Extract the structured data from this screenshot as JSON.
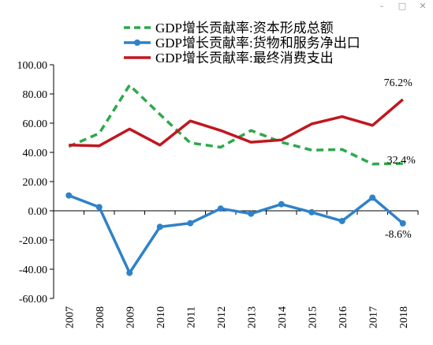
{
  "window": {
    "minimize_glyph": "–",
    "maximize_glyph": "□",
    "close_glyph": "✕",
    "minimize_icon": "minimize-icon",
    "maximize_icon": "maximize-icon",
    "close_icon": "close-icon"
  },
  "chart_data": {
    "type": "line",
    "title": "",
    "xlabel": "",
    "ylabel": "",
    "categories": [
      "2007",
      "2008",
      "2009",
      "2010",
      "2011",
      "2012",
      "2013",
      "2014",
      "2015",
      "2016",
      "2017",
      "2018"
    ],
    "ylim": [
      -60,
      100
    ],
    "yticks": [
      -60,
      -40,
      -20,
      0,
      20,
      40,
      60,
      80,
      100
    ],
    "ytick_labels": [
      "-60.00",
      "-40.00",
      "-20.00",
      "0.00",
      "20.00",
      "40.00",
      "60.00",
      "80.00",
      "100.00"
    ],
    "grid": false,
    "legend_position": "top",
    "series": [
      {
        "name": "GDP增长贡献率:资本形成总额",
        "color": "#2ea84b",
        "style": "dashed",
        "marker": "none",
        "values": [
          44,
          53,
          86,
          66,
          46.5,
          43.5,
          55,
          47,
          41.5,
          42,
          32,
          32.4
        ],
        "end_label": "32.4%"
      },
      {
        "name": "GDP增长贡献率:货物和服务净出口",
        "color": "#2f82c8",
        "style": "solid",
        "marker": "circle",
        "values": [
          10.5,
          2.5,
          -42.5,
          -11,
          -8.5,
          1.5,
          -2,
          4.5,
          -1,
          -7,
          9,
          -8.6
        ],
        "end_label": "-8.6%"
      },
      {
        "name": "GDP增长贡献率:最终消费支出",
        "color": "#c0171f",
        "style": "solid",
        "marker": "none",
        "values": [
          45,
          44.5,
          56,
          45,
          61.5,
          55,
          47,
          48.5,
          59.5,
          64.5,
          58.5,
          76.2
        ],
        "end_label": "76.2%"
      }
    ]
  }
}
